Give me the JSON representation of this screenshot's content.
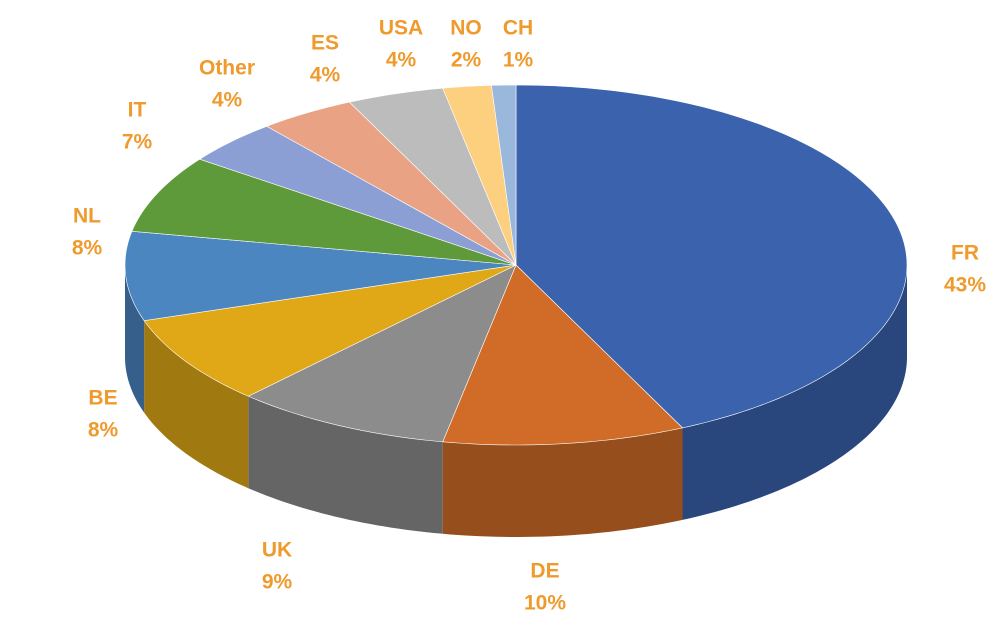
{
  "chart_data": {
    "type": "pie3d",
    "categories": [
      "FR",
      "DE",
      "UK",
      "BE",
      "NL",
      "IT",
      "Other",
      "ES",
      "USA",
      "NO",
      "CH"
    ],
    "values": [
      43,
      10,
      9,
      8,
      8,
      7,
      4,
      4,
      4,
      2,
      1
    ],
    "value_labels": [
      "43%",
      "10%",
      "9%",
      "8%",
      "8%",
      "7%",
      "4%",
      "4%",
      "4%",
      "2%",
      "1%"
    ],
    "colors": [
      "#3a62ad",
      "#d06c28",
      "#8c8c8c",
      "#e0a817",
      "#4b86c1",
      "#5f9a3a",
      "#8c9fd4",
      "#e9a283",
      "#bcbcbc",
      "#fdd080",
      "#9ab7dc"
    ],
    "label_color": "#ef9a2c"
  }
}
